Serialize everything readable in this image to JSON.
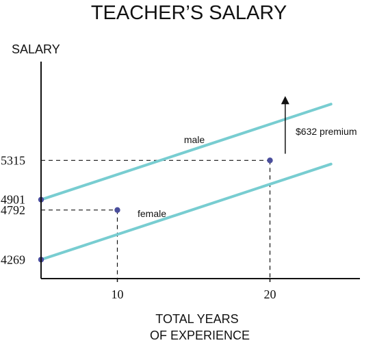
{
  "chart_data": {
    "type": "line",
    "title": "TEACHER’S SALARY",
    "ylabel": "SALARY",
    "xlabel_lines": [
      "TOTAL YEARS",
      "OF EXPERIENCE"
    ],
    "x_ticks": [
      10,
      20
    ],
    "y_ticks": [
      4269,
      4792,
      4901,
      5315
    ],
    "xlim": [
      5,
      26
    ],
    "ylim": [
      3700,
      5850
    ],
    "grid": false,
    "legend": "none",
    "series": [
      {
        "name": "male",
        "color": "#78cdd1",
        "x": [
          5,
          24
        ],
        "y": [
          4901,
          5908
        ]
      },
      {
        "name": "female",
        "color": "#78cdd1",
        "x": [
          5,
          24
        ],
        "y": [
          4269,
          5276
        ]
      }
    ],
    "points": [
      {
        "x": 5,
        "y": 4901
      },
      {
        "x": 5,
        "y": 4269
      },
      {
        "x": 10,
        "y": 4792
      },
      {
        "x": 20,
        "y": 5315
      }
    ],
    "reference_lines": [
      {
        "x": 10,
        "y": 4792
      },
      {
        "x": 20,
        "y": 5315
      }
    ],
    "annotation": {
      "text": "$632 premium",
      "x": 21,
      "y_from": 5385,
      "y_to": 5950
    },
    "point_color": "#4a4e9c",
    "axis_color": "#111111"
  }
}
